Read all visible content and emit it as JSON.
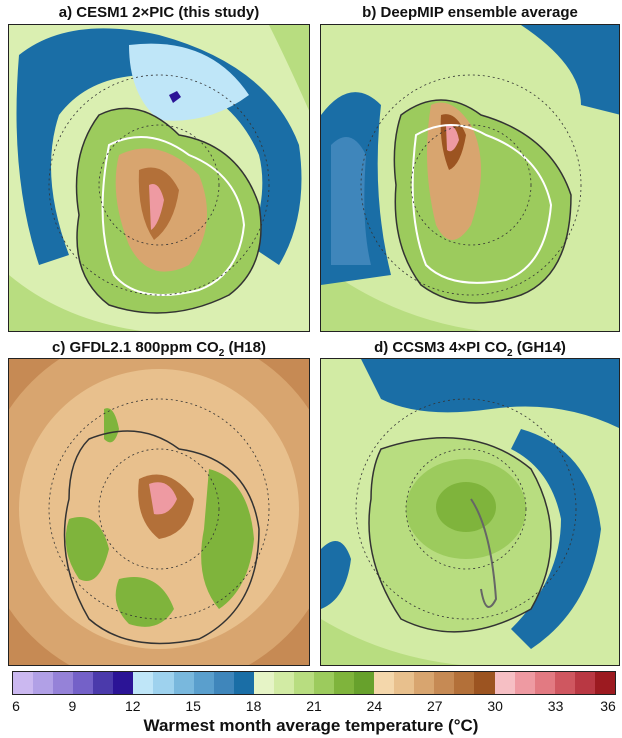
{
  "panels": [
    {
      "id": "a",
      "title_prefix": "a) CESM1 2",
      "title_mid": "×",
      "title_suffix": "PIC (this study)",
      "title_sub": ""
    },
    {
      "id": "b",
      "title_prefix": "b) DeepMIP ensemble average",
      "title_mid": "",
      "title_suffix": "",
      "title_sub": ""
    },
    {
      "id": "c",
      "title_prefix": "c) GFDL2.1 800ppm CO",
      "title_mid": "",
      "title_suffix": " (H18)",
      "title_sub": "2"
    },
    {
      "id": "d",
      "title_prefix": "d) CCSM3 4",
      "title_mid": "×",
      "title_suffix": "PI CO",
      "title_sub": "2",
      "title_tail": " (GH14)"
    }
  ],
  "colorbar": {
    "colors": [
      "#cbb8f0",
      "#b1a0e6",
      "#9582d8",
      "#7461c8",
      "#4b3aab",
      "#2b1496",
      "#bfe6f8",
      "#9ed2ee",
      "#79b8dd",
      "#5a9fcd",
      "#3f86bb",
      "#1a6ea6",
      "#e6f4c6",
      "#d2eba4",
      "#b8dd80",
      "#9ccb5d",
      "#7fb43c",
      "#67a12c",
      "#f4d7ab",
      "#e8c08d",
      "#d8a56f",
      "#c68a54",
      "#b37039",
      "#9c5421",
      "#f6bfc4",
      "#ee9aa2",
      "#e27a82",
      "#cf5760",
      "#b93843",
      "#9c1a20"
    ],
    "ticks": [
      "6",
      "9",
      "12",
      "15",
      "18",
      "21",
      "24",
      "27",
      "30",
      "33",
      "36"
    ],
    "label": "Warmest month average temperature (°C)"
  }
}
